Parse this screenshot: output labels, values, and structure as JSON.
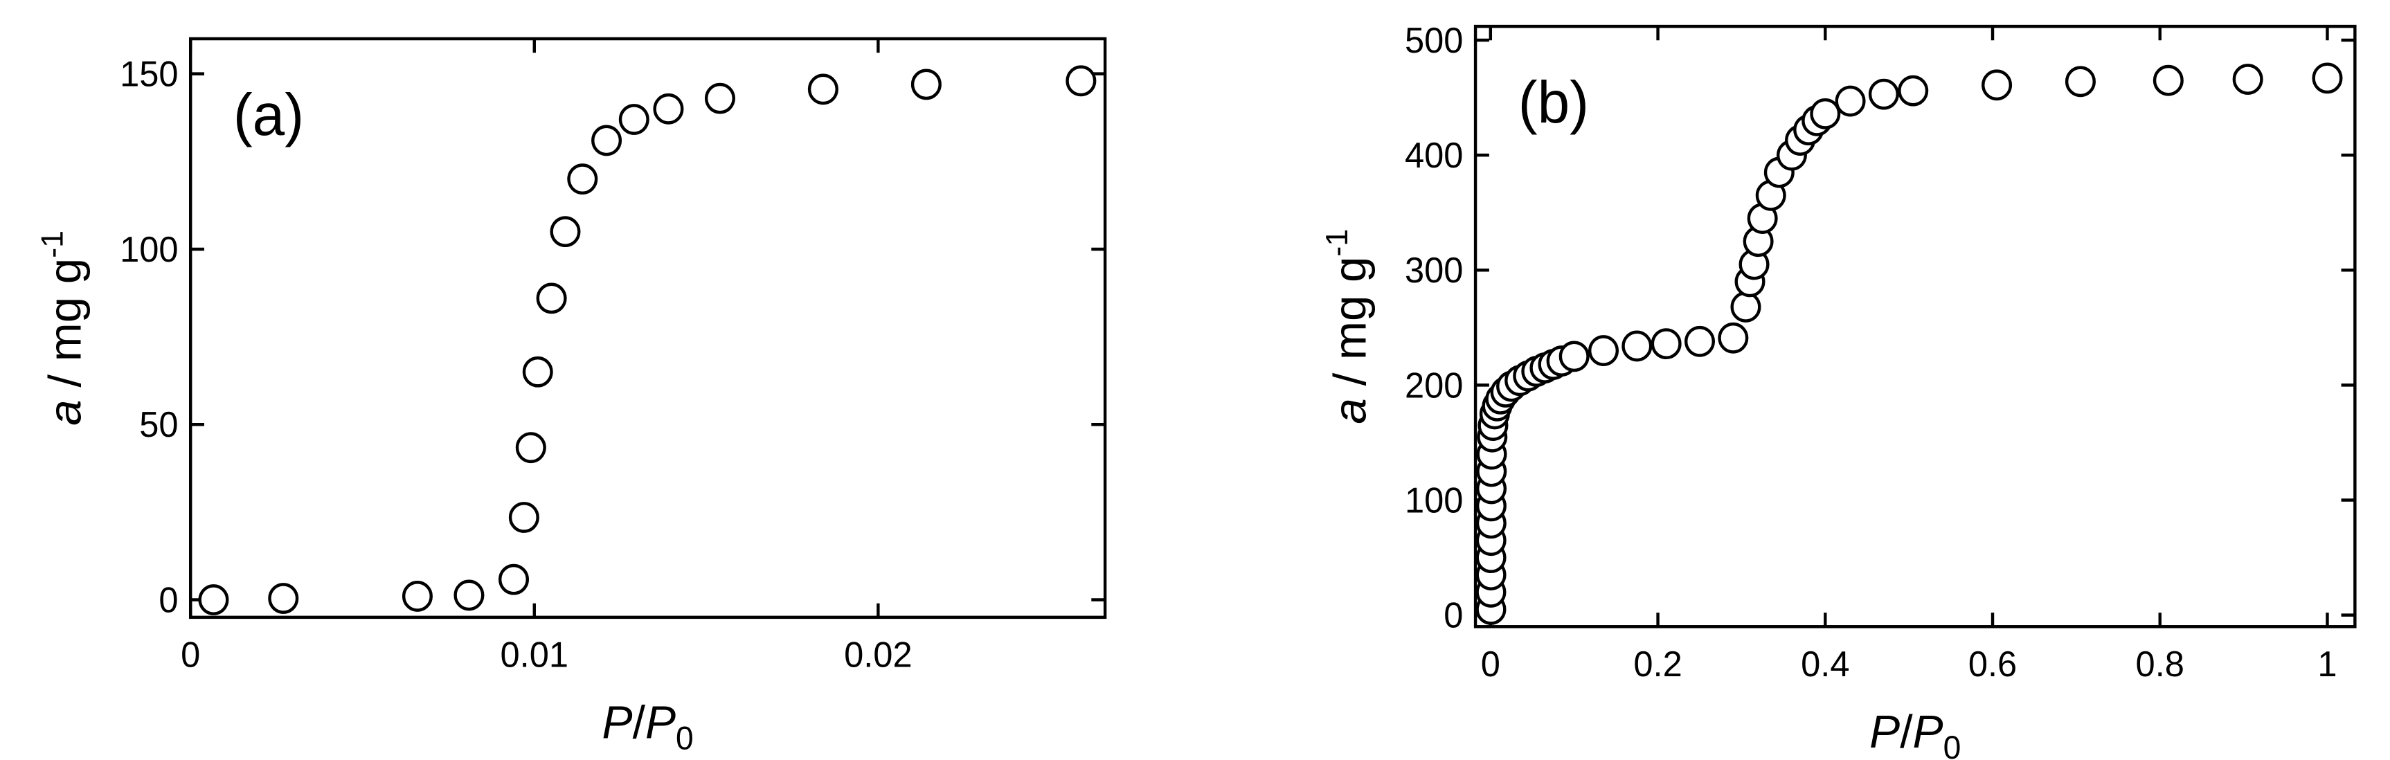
{
  "chart_data": [
    {
      "type": "scatter",
      "annotation": "(a)",
      "color": "#000000",
      "xlabel": [
        "P",
        "/",
        "P",
        "0"
      ],
      "ylabel": [
        "a",
        "/ mg g",
        "-1"
      ],
      "xlim": [
        0,
        0.0266
      ],
      "ylim": [
        -5,
        160
      ],
      "xticks": [
        0,
        0.01,
        0.02
      ],
      "yticks": [
        0,
        50,
        100,
        150
      ],
      "x": [
        0.00067,
        0.0027,
        0.0066,
        0.0081,
        0.0094,
        0.0097,
        0.0099,
        0.0101,
        0.0105,
        0.0109,
        0.0114,
        0.0121,
        0.0129,
        0.0139,
        0.0154,
        0.0184,
        0.0214,
        0.0259
      ],
      "values": [
        0,
        0.4,
        1,
        1.3,
        5.8,
        23.5,
        43.4,
        65,
        86,
        105,
        120,
        131,
        137,
        140,
        143,
        145.6,
        147,
        148
      ]
    },
    {
      "type": "scatter",
      "annotation": "(b)",
      "color": "#000000",
      "xlabel": [
        "P",
        "/",
        "P",
        "0"
      ],
      "ylabel": [
        "a",
        "/ mg g",
        "-1"
      ],
      "xlim": [
        -0.018,
        1.033
      ],
      "ylim": [
        -10,
        512
      ],
      "xticks": [
        0,
        0.2,
        0.4,
        0.6,
        0.8,
        1
      ],
      "yticks": [
        0,
        100,
        200,
        300,
        400,
        500
      ],
      "x": [
        0.0005,
        0.0005,
        0.0006,
        0.0006,
        0.0007,
        0.0008,
        0.0009,
        0.001,
        0.0012,
        0.0014,
        0.002,
        0.003,
        0.005,
        0.008,
        0.012,
        0.018,
        0.025,
        0.035,
        0.045,
        0.055,
        0.065,
        0.075,
        0.085,
        0.1,
        0.135,
        0.175,
        0.21,
        0.25,
        0.29,
        0.305,
        0.31,
        0.315,
        0.32,
        0.325,
        0.335,
        0.345,
        0.36,
        0.37,
        0.38,
        0.39,
        0.4,
        0.43,
        0.47,
        0.505,
        0.605,
        0.705,
        0.81,
        0.905,
        1.0
      ],
      "values": [
        5,
        20,
        35,
        50,
        65,
        80,
        95,
        110,
        125,
        140,
        155,
        165,
        175,
        182,
        188,
        194,
        199,
        204,
        208,
        212,
        215,
        218,
        221,
        225,
        230,
        234,
        236,
        238,
        241,
        268,
        290,
        305,
        325,
        345,
        365,
        385,
        400,
        413,
        422,
        430,
        436,
        447,
        453,
        456,
        461,
        464,
        465,
        466,
        467
      ]
    }
  ]
}
